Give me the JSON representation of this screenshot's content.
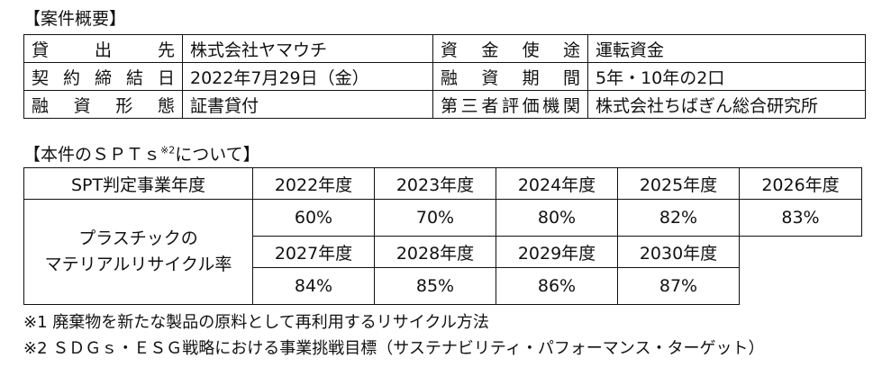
{
  "overview": {
    "title": "【案件概要】",
    "rows": [
      {
        "label1": "貸　出　先",
        "value1": "株式会社ヤマウチ",
        "label2": "資　金　使　途",
        "value2": "運転資金"
      },
      {
        "label1": "契約締結日",
        "value1": "2022年7月29日（金）",
        "label2": "融　資　期　間",
        "value2": "5年・10年の2口"
      },
      {
        "label1": "融　資　形　態",
        "value1": "証書貸付",
        "label2": "第三者評価機関",
        "value2": "株式会社ちばぎん総合研究所"
      }
    ]
  },
  "spt": {
    "title_pre": "【本件のＳＰＴｓ",
    "title_sup": "※2",
    "title_post": "について】",
    "header_label": "SPT判定事業年度",
    "row_label": "プラスチックの\nマテリアルリサイクル率",
    "years_1": [
      "2022年度",
      "2023年度",
      "2024年度",
      "2025年度",
      "2026年度"
    ],
    "values_1": [
      "60%",
      "70%",
      "80%",
      "82%",
      "83%"
    ],
    "years_2": [
      "2027年度",
      "2028年度",
      "2029年度",
      "2030年度"
    ],
    "values_2": [
      "84%",
      "85%",
      "86%",
      "87%"
    ]
  },
  "notes": [
    "※1 廃棄物を新たな製品の原料として再利用するリサイクル方法",
    "※2 ＳＤＧｓ・ＥＳＧ戦略における事業挑戦目標（サステナビリティ・パフォーマンス・ターゲット）"
  ]
}
